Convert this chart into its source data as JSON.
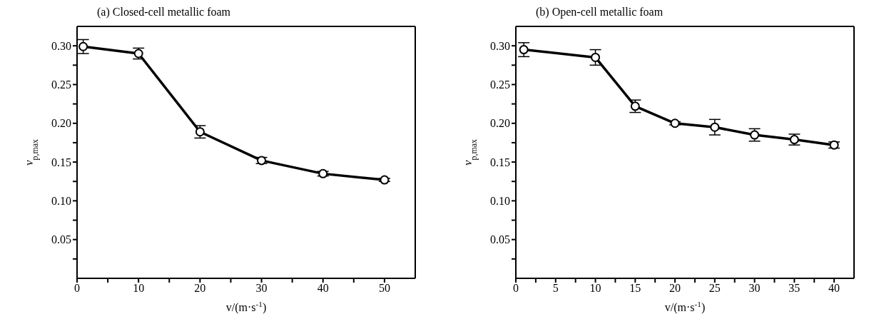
{
  "chart_data": [
    {
      "type": "line",
      "title": "(a) Closed-cell metallic foam",
      "xlabel": "v/(m·s$^{-1}$)",
      "ylabel": "v$_{p,max}$",
      "x": [
        1,
        10,
        20,
        30,
        40,
        50
      ],
      "series": [
        {
          "color": "#000000",
          "values": [
            0.299,
            0.29,
            0.189,
            0.152,
            0.135,
            0.127
          ],
          "errors": [
            0.009,
            0.007,
            0.008,
            0.004,
            0.003,
            0.002
          ]
        }
      ],
      "xlim": [
        0,
        55
      ],
      "xticks": [
        0,
        {
          "value": 5,
          "label": null
        },
        10,
        {
          "value": 15,
          "label": null
        },
        20,
        {
          "value": 25,
          "label": null
        },
        30,
        {
          "value": 35,
          "label": null
        },
        40,
        {
          "value": 45,
          "label": null
        },
        50
      ],
      "ylim": [
        0,
        0.325
      ],
      "yticks": [
        {
          "value": 0.025,
          "label": null
        },
        0.05,
        {
          "value": 0.075,
          "label": null
        },
        {
          "value": 0.1,
          "label": "0.10"
        },
        {
          "value": 0.125,
          "label": null
        },
        0.15,
        {
          "value": 0.175,
          "label": null
        },
        {
          "value": 0.2,
          "label": "0.20"
        },
        {
          "value": 0.225,
          "label": null
        },
        0.25,
        {
          "value": 0.275,
          "label": null
        },
        {
          "value": 0.3,
          "label": "0.30"
        }
      ],
      "grid": false,
      "legend": false,
      "marker": "circle",
      "line_style": "solid"
    },
    {
      "type": "line",
      "title": "(b) Open-cell metallic foam",
      "xlabel": "v/(m·s$^{-1}$)",
      "ylabel": "v$_{p,max}$",
      "x": [
        1,
        10,
        15,
        20,
        25,
        30,
        35,
        40
      ],
      "series": [
        {
          "color": "#000000",
          "values": [
            0.295,
            0.285,
            0.222,
            0.2,
            0.195,
            0.185,
            0.179,
            0.172
          ],
          "errors": [
            0.009,
            0.01,
            0.008,
            0.002,
            0.01,
            0.008,
            0.007,
            0.004
          ]
        }
      ],
      "xlim": [
        0,
        42.5
      ],
      "xticks": [
        0,
        {
          "value": 2.5,
          "label": null
        },
        5,
        {
          "value": 7.5,
          "label": null
        },
        10,
        {
          "value": 12.5,
          "label": null
        },
        15,
        {
          "value": 17.5,
          "label": null
        },
        20,
        {
          "value": 22.5,
          "label": null
        },
        25,
        {
          "value": 27.5,
          "label": null
        },
        30,
        {
          "value": 32.5,
          "label": null
        },
        35,
        {
          "value": 37.5,
          "label": null
        },
        40
      ],
      "ylim": [
        0,
        0.325
      ],
      "yticks": [
        {
          "value": 0.025,
          "label": null
        },
        0.05,
        {
          "value": 0.075,
          "label": null
        },
        {
          "value": 0.1,
          "label": "0.10"
        },
        {
          "value": 0.125,
          "label": null
        },
        0.15,
        {
          "value": 0.175,
          "label": null
        },
        {
          "value": 0.2,
          "label": "0.20"
        },
        {
          "value": 0.225,
          "label": null
        },
        0.25,
        {
          "value": 0.275,
          "label": null
        },
        {
          "value": 0.3,
          "label": "0.30"
        }
      ],
      "grid": false,
      "legend": false,
      "marker": "circle",
      "line_style": "solid"
    }
  ]
}
